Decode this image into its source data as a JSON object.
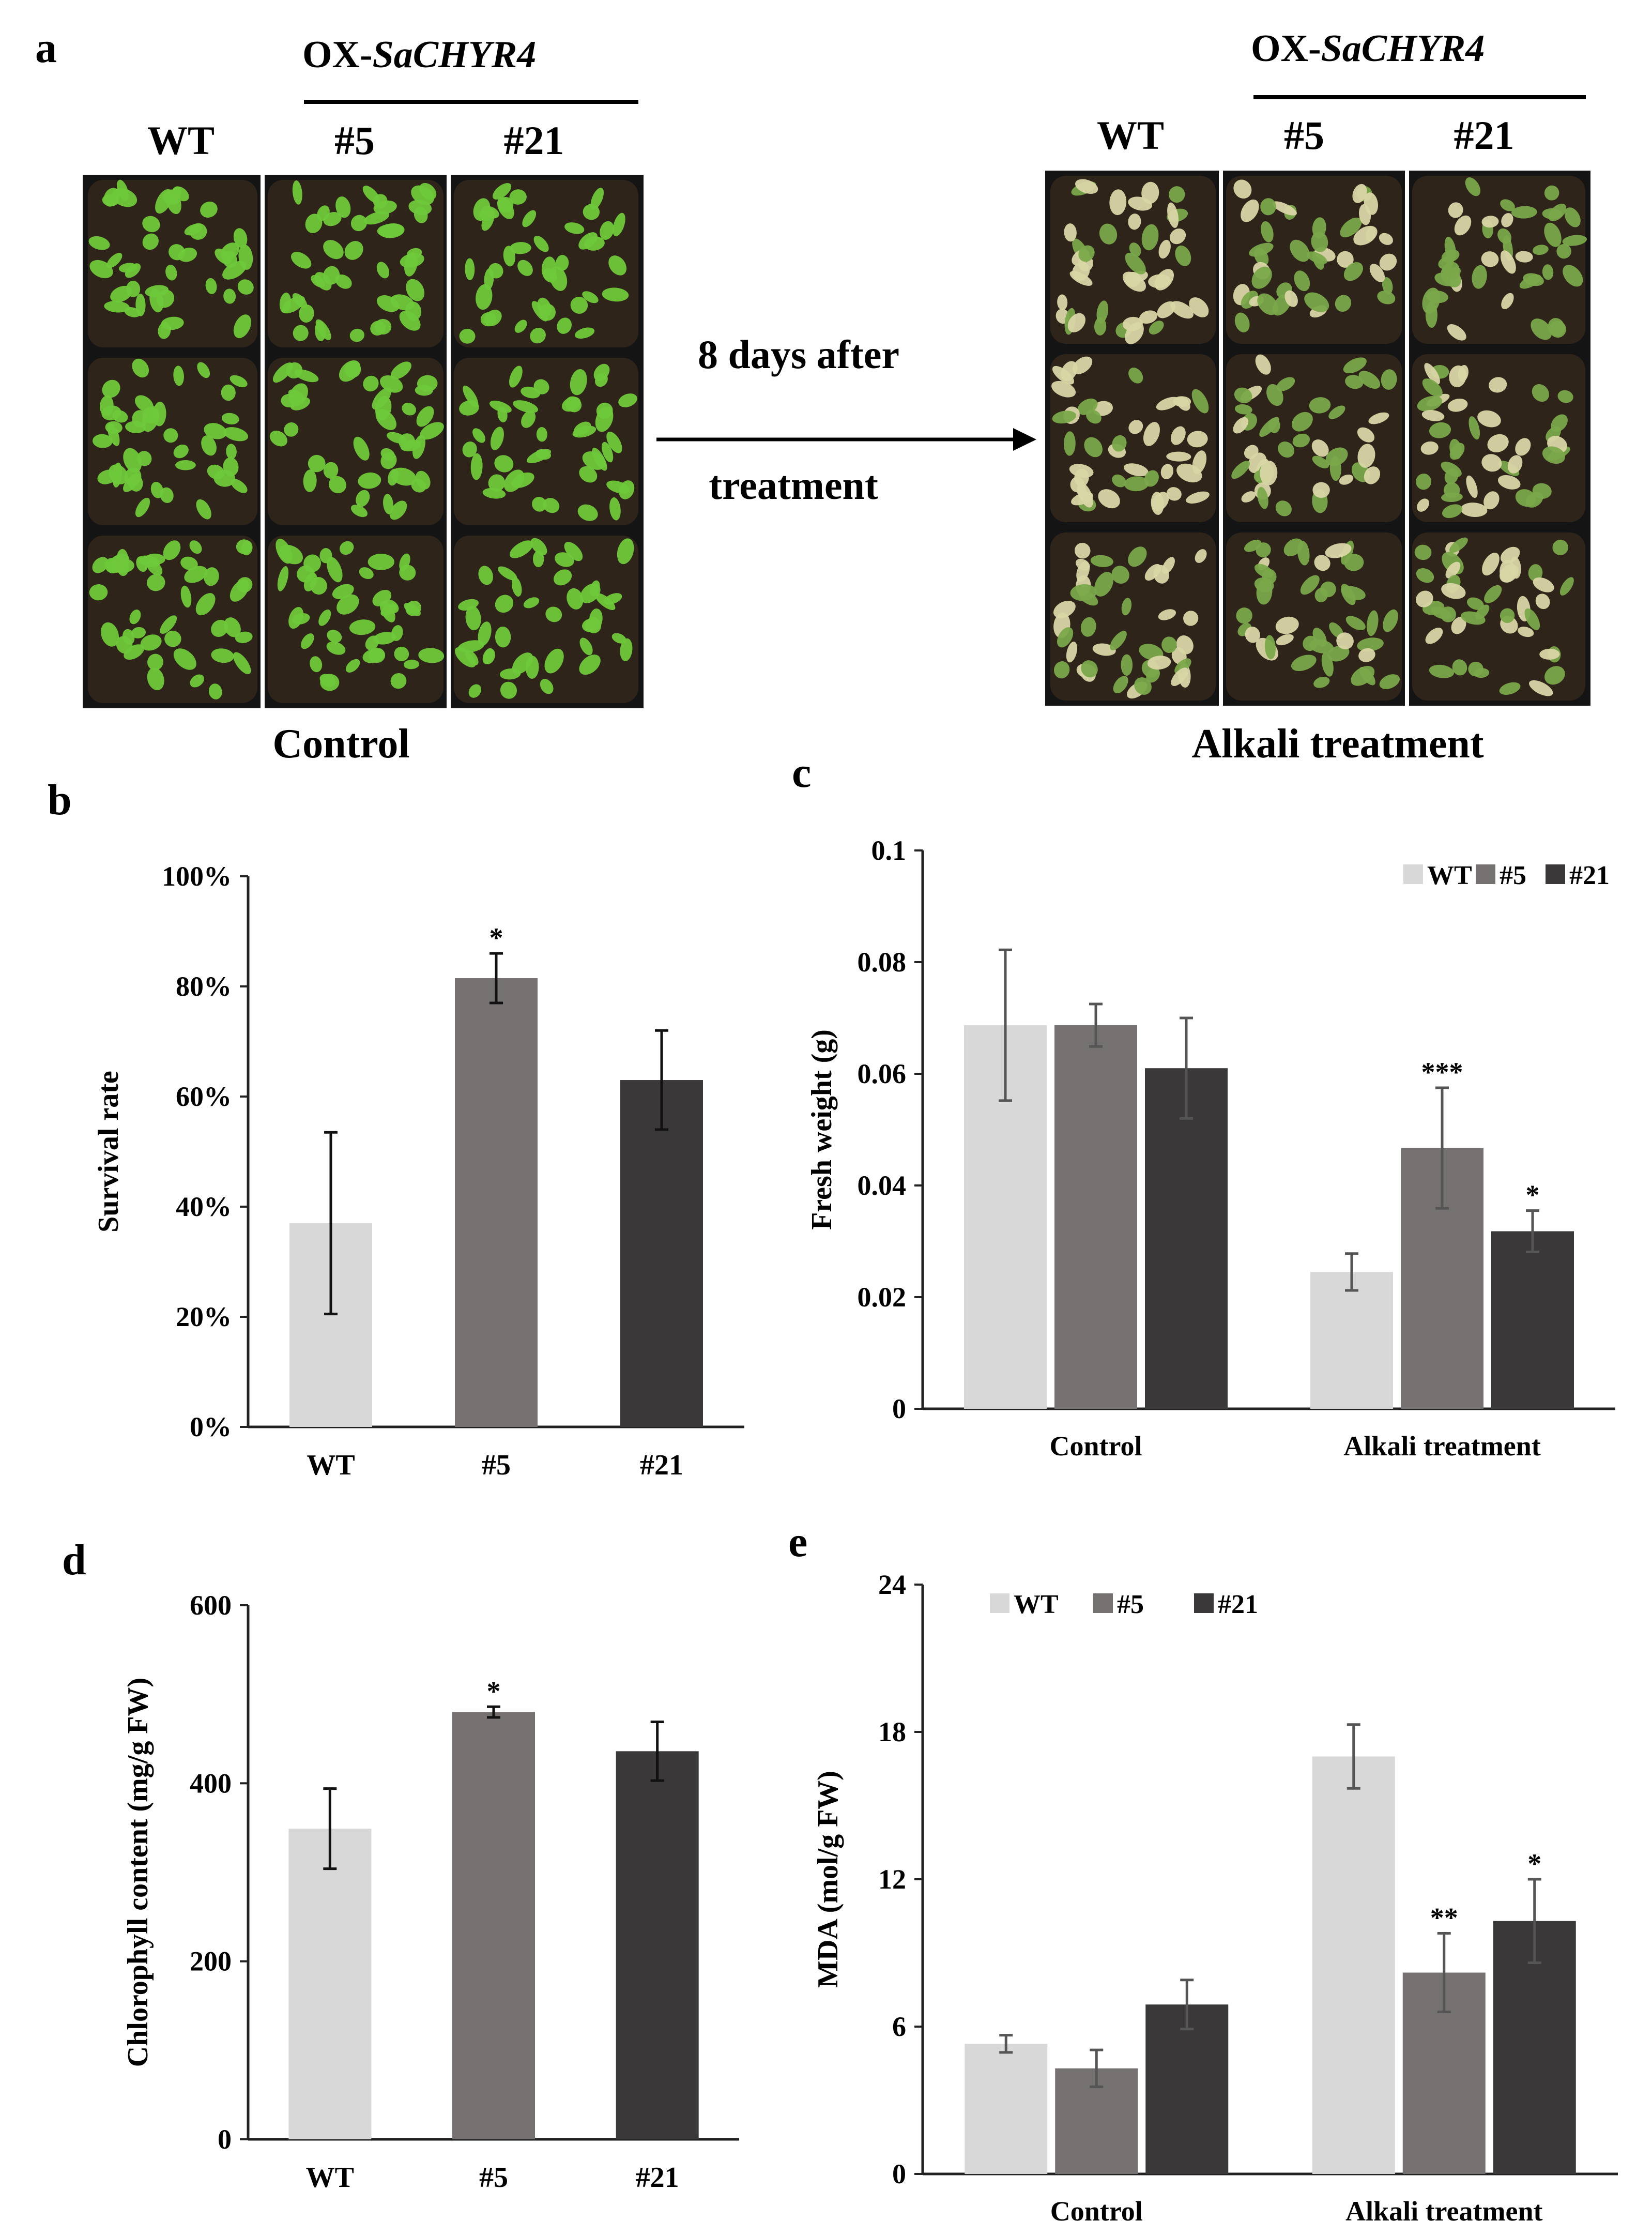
{
  "panel_labels": {
    "a": "a",
    "b": "b",
    "c": "c",
    "d": "d",
    "e": "e"
  },
  "panel_a": {
    "construct_prefix": "OX-",
    "construct_gene": "SaCHYR4",
    "genotypes": [
      "WT",
      "#5",
      "#21"
    ],
    "left_caption": "Control",
    "right_caption": "Alkali treatment",
    "arrow_text_line1": "8 days after",
    "arrow_text_line2": "treatment",
    "colors": {
      "tray": "#141414",
      "soil": "#2e2419",
      "healthy_leaf": "#6fc93a",
      "stressed_leaf": "#d9d6a6",
      "stressed_green": "#7aa84a"
    }
  },
  "chart_data": [
    {
      "id": "b",
      "type": "bar",
      "title": "",
      "xlabel": "",
      "ylabel": "Survival rate",
      "categories": [
        "WT",
        "#5",
        "#21"
      ],
      "values": [
        37,
        81.5,
        63
      ],
      "errors": [
        16.5,
        4.5,
        9
      ],
      "significance": [
        "",
        "*",
        ""
      ],
      "ylim": [
        0,
        100
      ],
      "yticks": [
        0,
        20,
        40,
        60,
        80,
        100
      ],
      "ytick_labels": [
        "0%",
        "20%",
        "40%",
        "60%",
        "80%",
        "100%"
      ],
      "colors": [
        "#d8d8d8",
        "#767171",
        "#3a3838"
      ]
    },
    {
      "id": "c",
      "type": "bar",
      "title": "",
      "xlabel": "",
      "ylabel": "Fresh weight (g)",
      "categories": [
        "Control",
        "Alkali treatment"
      ],
      "series": [
        {
          "name": "WT",
          "values": [
            0.0687,
            0.0245
          ],
          "errors": [
            0.0135,
            0.0033
          ],
          "significance": [
            "",
            ""
          ]
        },
        {
          "name": "#5",
          "values": [
            0.0687,
            0.0467
          ],
          "errors": [
            0.0038,
            0.0108
          ],
          "significance": [
            "",
            "***"
          ]
        },
        {
          "name": "#21",
          "values": [
            0.061,
            0.0318
          ],
          "errors": [
            0.009,
            0.0037
          ],
          "significance": [
            "",
            "*"
          ]
        }
      ],
      "ylim": [
        0,
        0.1
      ],
      "yticks": [
        0,
        0.02,
        0.04,
        0.06,
        0.08,
        0.1
      ],
      "ytick_labels": [
        "0",
        "0.02",
        "0.04",
        "0.06",
        "0.08",
        "0.1"
      ],
      "legend_position": "top-right",
      "colors": [
        "#d8d8d8",
        "#767171",
        "#3a3838"
      ]
    },
    {
      "id": "d",
      "type": "bar",
      "title": "",
      "xlabel": "",
      "ylabel": "Chlorophyll content (mg/g FW)",
      "categories": [
        "WT",
        "#5",
        "#21"
      ],
      "values": [
        349,
        480,
        436
      ],
      "errors": [
        45,
        6,
        33
      ],
      "significance": [
        "",
        "*",
        ""
      ],
      "ylim": [
        0,
        600
      ],
      "yticks": [
        0,
        200,
        400,
        600
      ],
      "ytick_labels": [
        "0",
        "200",
        "400",
        "600"
      ],
      "colors": [
        "#d8d8d8",
        "#767171",
        "#3a3838"
      ]
    },
    {
      "id": "e",
      "type": "bar",
      "title": "",
      "xlabel": "",
      "ylabel": "MDA (mol/g FW)",
      "categories": [
        "Control",
        "Alkali treatment"
      ],
      "series": [
        {
          "name": "WT",
          "values": [
            5.3,
            17
          ],
          "errors": [
            0.35,
            1.3
          ],
          "significance": [
            "",
            ""
          ]
        },
        {
          "name": "#5",
          "values": [
            4.3,
            8.2
          ],
          "errors": [
            0.75,
            1.6
          ],
          "significance": [
            "",
            "**"
          ]
        },
        {
          "name": "#21",
          "values": [
            6.9,
            10.3
          ],
          "errors": [
            1.0,
            1.7
          ],
          "significance": [
            "",
            "*"
          ]
        }
      ],
      "ylim": [
        0,
        24
      ],
      "yticks": [
        0,
        6,
        12,
        18,
        24
      ],
      "ytick_labels": [
        "0",
        "6",
        "12",
        "18",
        "24"
      ],
      "legend_position": "top-left",
      "colors": [
        "#d8d8d8",
        "#767171",
        "#3a3838"
      ]
    }
  ]
}
